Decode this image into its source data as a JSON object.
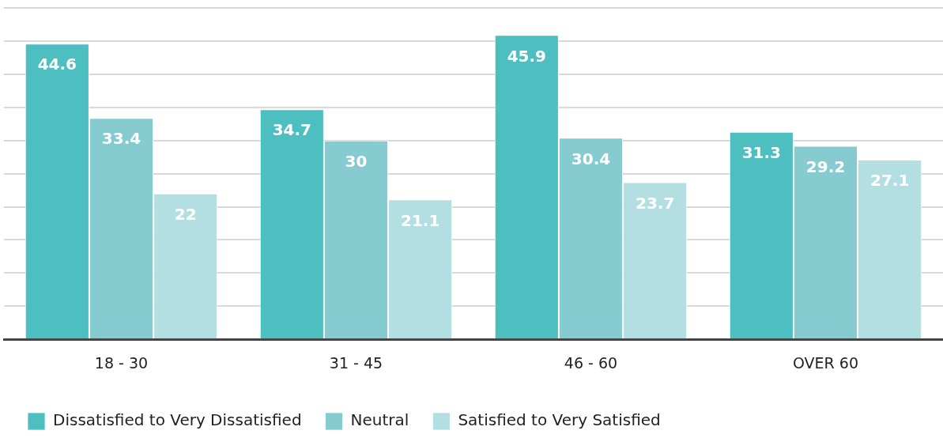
{
  "chart_data": {
    "type": "bar",
    "categories": [
      "18 - 30",
      "31 - 45",
      "46 - 60",
      "OVER 60"
    ],
    "series": [
      {
        "name": "Dissatisfied to Very Dissatisfied",
        "color": "#4dbfc1",
        "values": [
          44.6,
          34.7,
          45.9,
          31.3
        ]
      },
      {
        "name": "Neutral",
        "color": "#86cbcf",
        "values": [
          33.4,
          30,
          30.4,
          29.2
        ]
      },
      {
        "name": "Satisfied to Very Satisfied",
        "color": "#b3dfe2",
        "values": [
          22,
          21.1,
          23.7,
          27.1
        ]
      }
    ],
    "ylim": [
      0,
      50
    ],
    "yticks": [
      {
        "value": 0,
        "label": null
      },
      {
        "value": 5,
        "label": null
      },
      {
        "value": 10,
        "label": null
      },
      {
        "value": 15,
        "label": null
      },
      {
        "value": 20,
        "label": null
      },
      {
        "value": 25,
        "label": null
      },
      {
        "value": 30,
        "label": null
      },
      {
        "value": 35,
        "label": null
      },
      {
        "value": 40,
        "label": null
      },
      {
        "value": 45,
        "label": null
      },
      {
        "value": 50,
        "label": null
      }
    ],
    "grid": "y",
    "legend": "bottom left",
    "data_labels": true,
    "tick_labels": "x"
  }
}
